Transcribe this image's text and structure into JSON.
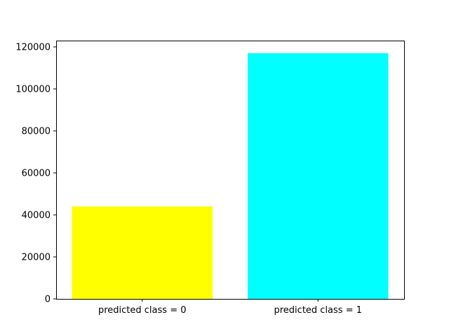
{
  "chart_data": {
    "type": "bar",
    "categories": [
      "predicted class = 0",
      "predicted class = 1"
    ],
    "values": [
      44000,
      117000
    ],
    "colors": [
      "#ffff00",
      "#00ffff"
    ],
    "title": "",
    "xlabel": "",
    "ylabel": "",
    "ylim": [
      0,
      123000
    ],
    "yticks": [
      0,
      20000,
      40000,
      60000,
      80000,
      100000,
      120000
    ],
    "ytick_labels": [
      "0",
      "20000",
      "40000",
      "60000",
      "80000",
      "100000",
      "120000"
    ],
    "grid": false,
    "legend": "none"
  }
}
